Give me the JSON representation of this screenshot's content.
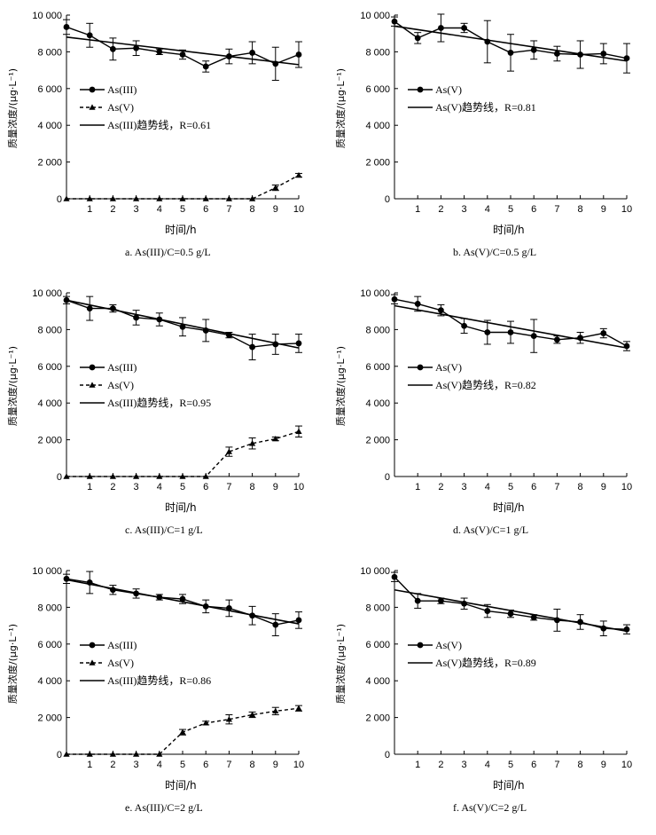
{
  "chart_data": [
    {
      "type": "line",
      "caption": "a.  As(III)/C=0.5 g/L",
      "ylabel": "质量浓度/(μg·L⁻¹)",
      "xlabel": "时间/h",
      "ylim": [
        0,
        10000
      ],
      "yticks": [
        "0",
        "2 000",
        "4 000",
        "6 000",
        "8 000",
        "10 000"
      ],
      "xticks": [
        "1",
        "2",
        "3",
        "4",
        "5",
        "6",
        "7",
        "8",
        "9",
        "10"
      ],
      "xlim": [
        0,
        10
      ],
      "legend_position": "middle-left",
      "series": [
        {
          "name": "As(III)",
          "style": "solid-circle",
          "x": [
            0,
            1,
            2,
            3,
            4,
            5,
            6,
            7,
            8,
            9,
            10
          ],
          "y": [
            9350,
            8900,
            8150,
            8200,
            8000,
            7850,
            7200,
            7750,
            7950,
            7350,
            7850
          ],
          "err": [
            400,
            650,
            600,
            400,
            150,
            250,
            300,
            400,
            600,
            900,
            700
          ]
        },
        {
          "name": "As(V)",
          "style": "dashed-triangle",
          "x": [
            0,
            1,
            2,
            3,
            4,
            5,
            6,
            7,
            8,
            9,
            10
          ],
          "y": [
            0,
            0,
            0,
            0,
            0,
            0,
            0,
            0,
            0,
            600,
            1280
          ],
          "err": [
            0,
            0,
            0,
            0,
            0,
            0,
            0,
            0,
            0,
            150,
            100
          ]
        },
        {
          "name": "As(III)趋势线，R=0.61",
          "style": "trend",
          "x": [
            0,
            10
          ],
          "y": [
            8800,
            7300
          ]
        }
      ],
      "legend": [
        {
          "text": "As(III)",
          "style": "solid-circle"
        },
        {
          "text": "As(V)",
          "style": "dashed-triangle"
        },
        {
          "text": "As(III)趋势线，R=0.61",
          "style": "trend"
        }
      ]
    },
    {
      "type": "line",
      "caption": "b.  As(V)/C=0.5 g/L",
      "ylabel": "质量浓度/(μg·L⁻¹)",
      "xlabel": "时间/h",
      "ylim": [
        0,
        10000
      ],
      "yticks": [
        "0",
        "2 000",
        "4 000",
        "6 000",
        "8 000",
        "10 000"
      ],
      "xticks": [
        "1",
        "2",
        "3",
        "4",
        "5",
        "6",
        "7",
        "8",
        "9",
        "10"
      ],
      "xlim": [
        0,
        10
      ],
      "legend_position": "middle-left",
      "series": [
        {
          "name": "As(V)",
          "style": "solid-circle",
          "x": [
            0,
            1,
            2,
            3,
            4,
            5,
            6,
            7,
            8,
            9,
            10
          ],
          "y": [
            9650,
            8750,
            9300,
            9300,
            8550,
            7950,
            8100,
            7900,
            7850,
            7900,
            7650
          ],
          "err": [
            250,
            300,
            750,
            250,
            1150,
            1000,
            500,
            400,
            750,
            550,
            800
          ]
        },
        {
          "name": "As(V)趋势线，R=0.81",
          "style": "trend",
          "x": [
            0,
            10
          ],
          "y": [
            9400,
            7500
          ]
        }
      ],
      "legend": [
        {
          "text": "As(V)",
          "style": "solid-circle"
        },
        {
          "text": "As(V)趋势线，R=0.81",
          "style": "trend"
        }
      ]
    },
    {
      "type": "line",
      "caption": "c.  As(III)/C=1 g/L",
      "ylabel": "质量浓度/(μg·L⁻¹)",
      "xlabel": "时间/h",
      "ylim": [
        0,
        10000
      ],
      "yticks": [
        "0",
        "2 000",
        "4 000",
        "6 000",
        "8 000",
        "10 000"
      ],
      "xticks": [
        "1",
        "2",
        "3",
        "4",
        "5",
        "6",
        "7",
        "8",
        "9",
        "10"
      ],
      "xlim": [
        0,
        10
      ],
      "legend_position": "middle-left",
      "series": [
        {
          "name": "As(III)",
          "style": "solid-circle",
          "x": [
            0,
            1,
            2,
            3,
            4,
            5,
            6,
            7,
            8,
            9,
            10
          ],
          "y": [
            9600,
            9150,
            9150,
            8650,
            8550,
            8150,
            7950,
            7700,
            7050,
            7200,
            7250
          ],
          "err": [
            200,
            650,
            200,
            400,
            350,
            500,
            600,
            150,
            700,
            550,
            500
          ]
        },
        {
          "name": "As(V)",
          "style": "dashed-triangle",
          "x": [
            0,
            1,
            2,
            3,
            4,
            5,
            6,
            7,
            8,
            9,
            10
          ],
          "y": [
            0,
            0,
            0,
            0,
            0,
            0,
            0,
            1350,
            1800,
            2050,
            2450
          ],
          "err": [
            0,
            0,
            0,
            0,
            0,
            0,
            0,
            250,
            300,
            100,
            300
          ]
        },
        {
          "name": "As(III)趋势线，R=0.95",
          "style": "trend",
          "x": [
            0,
            10
          ],
          "y": [
            9600,
            7000
          ]
        }
      ],
      "legend": [
        {
          "text": "As(III)",
          "style": "solid-circle"
        },
        {
          "text": "As(V)",
          "style": "dashed-triangle"
        },
        {
          "text": "As(III)趋势线，R=0.95",
          "style": "trend"
        }
      ]
    },
    {
      "type": "line",
      "caption": "d.  As(V)/C=1 g/L",
      "ylabel": "质量浓度/(μg·L⁻¹)",
      "xlabel": "时间/h",
      "ylim": [
        0,
        10000
      ],
      "yticks": [
        "0",
        "2 000",
        "4 000",
        "6 000",
        "8 000",
        "10 000"
      ],
      "xticks": [
        "1",
        "2",
        "3",
        "4",
        "5",
        "6",
        "7",
        "8",
        "9",
        "10"
      ],
      "xlim": [
        0,
        10
      ],
      "legend_position": "middle-left",
      "series": [
        {
          "name": "As(V)",
          "style": "solid-circle",
          "x": [
            0,
            1,
            2,
            3,
            4,
            5,
            6,
            7,
            8,
            9,
            10
          ],
          "y": [
            9650,
            9400,
            9050,
            8200,
            7850,
            7850,
            7650,
            7450,
            7550,
            7800,
            7100
          ],
          "err": [
            250,
            400,
            300,
            400,
            650,
            600,
            900,
            200,
            300,
            250,
            250
          ]
        },
        {
          "name": "As(V)趋势线，R=0.82",
          "style": "trend",
          "x": [
            0,
            10
          ],
          "y": [
            9300,
            7000
          ]
        }
      ],
      "legend": [
        {
          "text": "As(V)",
          "style": "solid-circle"
        },
        {
          "text": "As(V)趋势线，R=0.82",
          "style": "trend"
        }
      ]
    },
    {
      "type": "line",
      "caption": "e.  As(III)/C=2 g/L",
      "ylabel": "质量浓度/(μg·L⁻¹)",
      "xlabel": "时间/h",
      "ylim": [
        0,
        10000
      ],
      "yticks": [
        "0",
        "2 000",
        "4 000",
        "6 000",
        "8 000",
        "10 000"
      ],
      "xticks": [
        "1",
        "2",
        "3",
        "4",
        "5",
        "6",
        "7",
        "8",
        "9",
        "10"
      ],
      "xlim": [
        0,
        10
      ],
      "legend_position": "middle-left",
      "series": [
        {
          "name": "As(III)",
          "style": "solid-circle",
          "x": [
            0,
            1,
            2,
            3,
            4,
            5,
            6,
            7,
            8,
            9,
            10
          ],
          "y": [
            9550,
            9350,
            8950,
            8750,
            8550,
            8450,
            8050,
            7950,
            7550,
            7050,
            7300
          ],
          "err": [
            250,
            600,
            250,
            250,
            150,
            250,
            350,
            450,
            500,
            600,
            450
          ]
        },
        {
          "name": "As(V)",
          "style": "dashed-triangle",
          "x": [
            0,
            1,
            2,
            3,
            4,
            5,
            6,
            7,
            8,
            9,
            10
          ],
          "y": [
            0,
            0,
            0,
            0,
            0,
            1200,
            1700,
            1900,
            2150,
            2350,
            2500
          ],
          "err": [
            0,
            0,
            0,
            0,
            0,
            150,
            100,
            250,
            150,
            200,
            150
          ]
        },
        {
          "name": "As(III)趋势线，R=0.86",
          "style": "trend",
          "x": [
            0,
            10
          ],
          "y": [
            9500,
            7100
          ]
        }
      ],
      "legend": [
        {
          "text": "As(III)",
          "style": "solid-circle"
        },
        {
          "text": "As(V)",
          "style": "dashed-triangle"
        },
        {
          "text": "As(III)趋势线，R=0.86",
          "style": "trend"
        }
      ]
    },
    {
      "type": "line",
      "caption": "f.  As(V)/C=2 g/L",
      "ylabel": "质量浓度/(μg·L⁻¹)",
      "xlabel": "时间/h",
      "ylim": [
        0,
        10000
      ],
      "yticks": [
        "0",
        "2 000",
        "4 000",
        "6 000",
        "8 000",
        "10 000"
      ],
      "xticks": [
        "1",
        "2",
        "3",
        "4",
        "5",
        "6",
        "7",
        "8",
        "9",
        "10"
      ],
      "xlim": [
        0,
        10
      ],
      "legend_position": "middle-left",
      "series": [
        {
          "name": "As(V)",
          "style": "solid-circle",
          "x": [
            0,
            1,
            2,
            3,
            4,
            5,
            6,
            7,
            8,
            9,
            10
          ],
          "y": [
            9650,
            8350,
            8350,
            8200,
            7800,
            7650,
            7450,
            7300,
            7200,
            6850,
            6800
          ],
          "err": [
            250,
            400,
            150,
            300,
            350,
            200,
            150,
            600,
            400,
            400,
            250
          ]
        },
        {
          "name": "As(V)趋势线，R=0.89",
          "style": "trend",
          "x": [
            0,
            10
          ],
          "y": [
            8950,
            6700
          ]
        }
      ],
      "legend": [
        {
          "text": "As(V)",
          "style": "solid-circle"
        },
        {
          "text": "As(V)趋势线，R=0.89",
          "style": "trend"
        }
      ]
    }
  ]
}
